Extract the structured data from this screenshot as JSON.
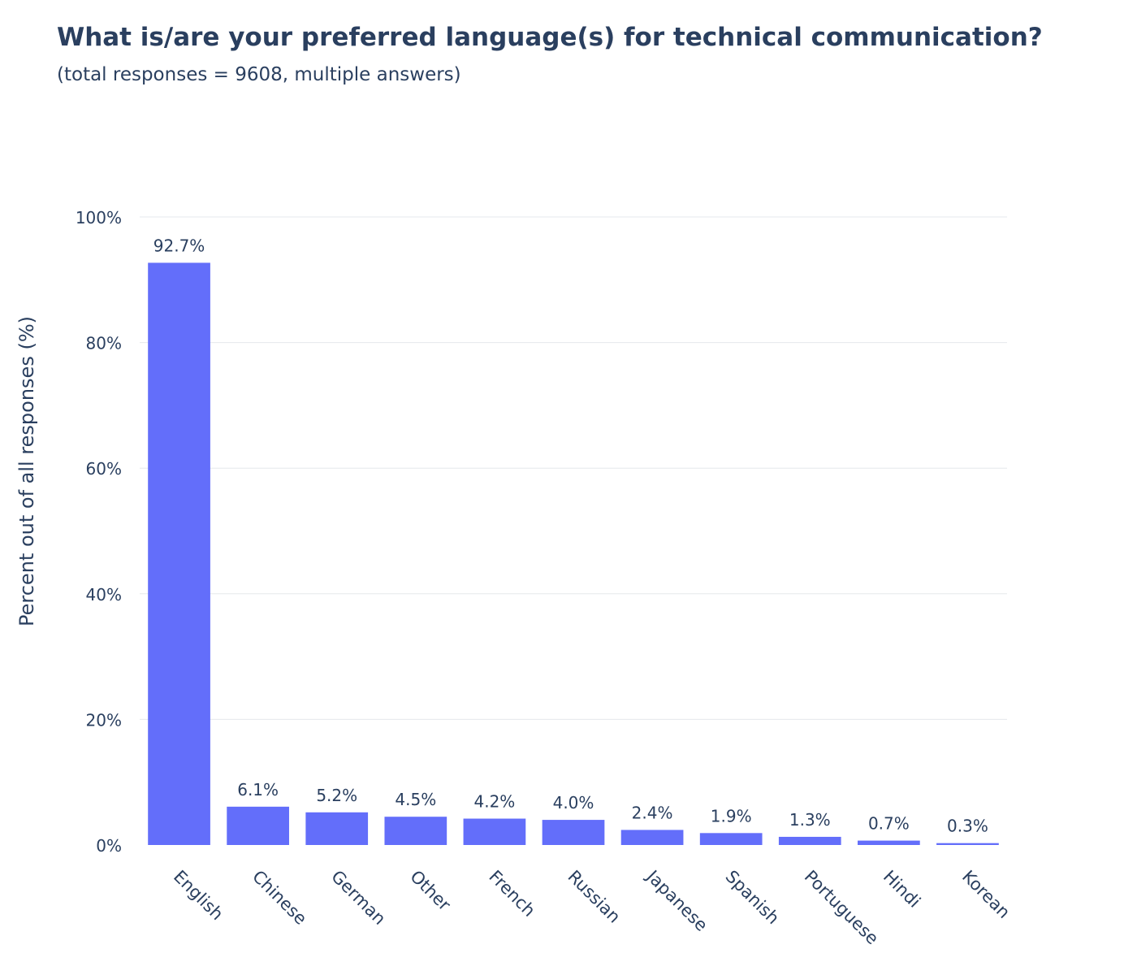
{
  "chart_data": {
    "type": "bar",
    "title": "What is/are your preferred language(s) for technical communication?",
    "subtitle": "(total responses = 9608, multiple answers)",
    "xlabel": "",
    "ylabel": "Percent out of all responses (%)",
    "ylim": [
      0,
      100
    ],
    "y_ticks": [
      0,
      20,
      40,
      60,
      80,
      100
    ],
    "y_tick_labels": [
      "0%",
      "20%",
      "40%",
      "60%",
      "80%",
      "100%"
    ],
    "grid": true,
    "bar_color": "#636efa",
    "categories": [
      "English",
      "Chinese",
      "German",
      "Other",
      "French",
      "Russian",
      "Japanese",
      "Spanish",
      "Portuguese",
      "Hindi",
      "Korean"
    ],
    "values": [
      92.7,
      6.1,
      5.2,
      4.5,
      4.2,
      4.0,
      2.4,
      1.9,
      1.3,
      0.7,
      0.3
    ],
    "value_labels": [
      "92.7%",
      "6.1%",
      "5.2%",
      "4.5%",
      "4.2%",
      "4.0%",
      "2.4%",
      "1.9%",
      "1.3%",
      "0.7%",
      "0.3%"
    ]
  }
}
